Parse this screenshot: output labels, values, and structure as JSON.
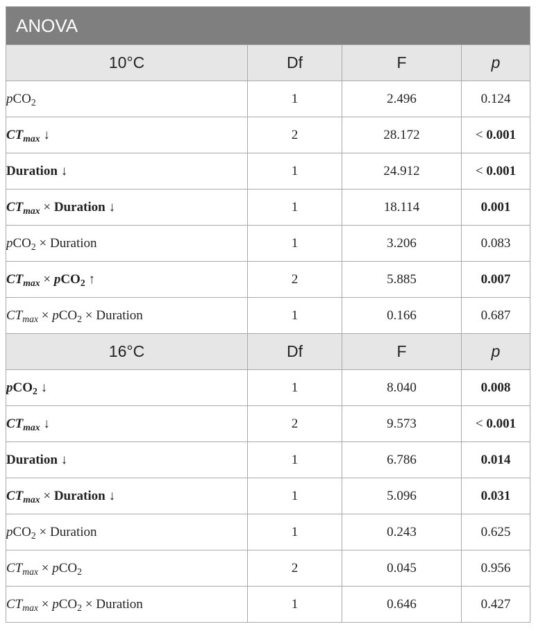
{
  "table": {
    "title": "ANOVA",
    "sections": [
      {
        "temperature": "10°C",
        "columns": [
          "Df",
          "F",
          "p"
        ],
        "rows": [
          {
            "term": [
              "p",
              "CO",
              "2"
            ],
            "bold": false,
            "arrow": "",
            "df": "1",
            "f": "2.496",
            "p_prefix": "",
            "p": "0.124",
            "sig": false
          },
          {
            "term": [
              "CT",
              "max"
            ],
            "bold": true,
            "arrow": "↓",
            "df": "2",
            "f": "28.172",
            "p_prefix": "<",
            "p": "0.001",
            "sig": true
          },
          {
            "term": [
              "Duration"
            ],
            "bold": true,
            "arrow": "↓",
            "df": "1",
            "f": "24.912",
            "p_prefix": "<",
            "p": "0.001",
            "sig": true
          },
          {
            "term": [
              "CT",
              "max",
              "×",
              "Duration"
            ],
            "bold": true,
            "arrow": "↓",
            "df": "1",
            "f": "18.114",
            "p_prefix": "",
            "p": "0.001",
            "sig": true
          },
          {
            "term": [
              "p",
              "CO",
              "2",
              "×",
              "Duration"
            ],
            "bold": false,
            "arrow": "",
            "df": "1",
            "f": "3.206",
            "p_prefix": "",
            "p": "0.083",
            "sig": false
          },
          {
            "term": [
              "CT",
              "max",
              "×",
              "p",
              "CO",
              "2"
            ],
            "bold": true,
            "arrow": "↑",
            "df": "2",
            "f": "5.885",
            "p_prefix": "",
            "p": "0.007",
            "sig": true
          },
          {
            "term": [
              "CT",
              "max",
              "×",
              "p",
              "CO",
              "2",
              "×",
              "Duration"
            ],
            "bold": false,
            "arrow": "",
            "df": "1",
            "f": "0.166",
            "p_prefix": "",
            "p": "0.687",
            "sig": false
          }
        ]
      },
      {
        "temperature": "16°C",
        "columns": [
          "Df",
          "F",
          "p"
        ],
        "rows": [
          {
            "term": [
              "p",
              "CO",
              "2"
            ],
            "bold": true,
            "arrow": "↓",
            "df": "1",
            "f": "8.040",
            "p_prefix": "",
            "p": "0.008",
            "sig": true
          },
          {
            "term": [
              "CT",
              "max"
            ],
            "bold": true,
            "arrow": "↓",
            "df": "2",
            "f": "9.573",
            "p_prefix": "<",
            "p": "0.001",
            "sig": true
          },
          {
            "term": [
              "Duration"
            ],
            "bold": true,
            "arrow": "↓",
            "df": "1",
            "f": "6.786",
            "p_prefix": "",
            "p": "0.014",
            "sig": true
          },
          {
            "term": [
              "CT",
              "max",
              "×",
              "Duration"
            ],
            "bold": true,
            "arrow": "↓",
            "df": "1",
            "f": "5.096",
            "p_prefix": "",
            "p": "0.031",
            "sig": true
          },
          {
            "term": [
              "p",
              "CO",
              "2",
              "×",
              "Duration"
            ],
            "bold": false,
            "arrow": "",
            "df": "1",
            "f": "0.243",
            "p_prefix": "",
            "p": "0.625",
            "sig": false
          },
          {
            "term": [
              "CT",
              "max",
              "×",
              "p",
              "CO",
              "2"
            ],
            "bold": false,
            "arrow": "",
            "df": "2",
            "f": "0.045",
            "p_prefix": "",
            "p": "0.956",
            "sig": false
          },
          {
            "term": [
              "CT",
              "max",
              "×",
              "p",
              "CO",
              "2",
              "×",
              "Duration"
            ],
            "bold": false,
            "arrow": "",
            "df": "1",
            "f": "0.646",
            "p_prefix": "",
            "p": "0.427",
            "sig": false
          }
        ]
      }
    ]
  }
}
